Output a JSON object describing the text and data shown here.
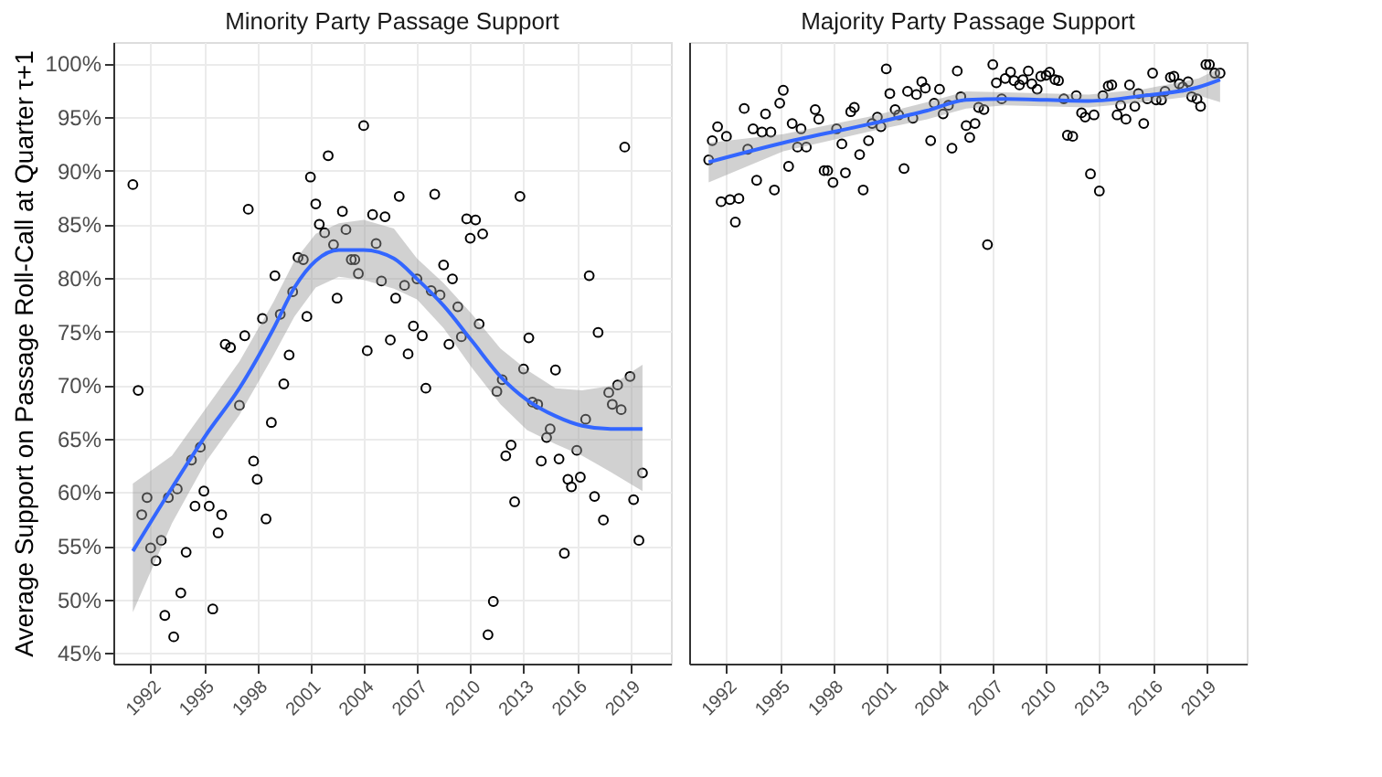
{
  "chart_data": [
    {
      "type": "scatter",
      "title": "Minority Party Passage Support",
      "ylabel": "Average Support on Passage Roll-Call at Quarter τ+1",
      "xlim": [
        1989.9,
        2021.3
      ],
      "xticks": [
        1992,
        1995,
        1998,
        2001,
        2004,
        2007,
        2010,
        2013,
        2016,
        2019
      ],
      "ylim": [
        44,
        102
      ],
      "yticks": [
        {
          "value": 45,
          "label": "45%"
        },
        {
          "value": 50,
          "label": "50%"
        },
        {
          "value": 55,
          "label": "55%"
        },
        {
          "value": 60,
          "label": "60%"
        },
        {
          "value": 65,
          "label": "65%"
        },
        {
          "value": 70,
          "label": "70%"
        },
        {
          "value": 75,
          "label": "75%"
        },
        {
          "value": 80,
          "label": "80%"
        },
        {
          "value": 85,
          "label": "85%"
        },
        {
          "value": 90,
          "label": "90%"
        },
        {
          "value": 95,
          "label": "95%"
        },
        {
          "value": 100,
          "label": "100%"
        }
      ],
      "grid": true,
      "series": [
        {
          "color": "#000000",
          "marker": "circle",
          "x": [
            1991.0,
            1991.3,
            1991.8,
            1991.5,
            1992.0,
            1992.3,
            1992.6,
            1992.8,
            1993.3,
            1993.0,
            1993.5,
            1993.7,
            1994.0,
            1994.3,
            1994.8,
            1994.5,
            1995.0,
            1995.3,
            1995.5,
            1995.8,
            1996.0,
            1996.2,
            1996.5,
            1997.0,
            1997.3,
            1997.5,
            1997.8,
            1998.0,
            1998.3,
            1998.5,
            1998.8,
            1999.0,
            1999.3,
            1999.5,
            1999.8,
            2000.0,
            2000.3,
            2000.6,
            2000.8,
            2001.0,
            2001.3,
            2001.5,
            2001.8,
            2002.0,
            2002.3,
            2002.5,
            2002.8,
            2003.0,
            2003.3,
            2003.5,
            2003.7,
            2004.0,
            2004.2,
            2004.5,
            2004.7,
            2005.0,
            2005.2,
            2005.5,
            2005.8,
            2006.0,
            2006.3,
            2006.5,
            2006.8,
            2007.0,
            2007.3,
            2007.5,
            2007.8,
            2008.0,
            2008.3,
            2008.5,
            2008.8,
            2009.0,
            2009.3,
            2009.5,
            2009.8,
            2010.0,
            2010.3,
            2010.5,
            2010.7,
            2011.0,
            2011.3,
            2011.5,
            2011.8,
            2012.0,
            2012.3,
            2012.5,
            2012.8,
            2013.0,
            2013.3,
            2013.5,
            2013.8,
            2014.0,
            2014.3,
            2014.5,
            2014.8,
            2015.0,
            2015.3,
            2015.5,
            2015.7,
            2016.0,
            2016.2,
            2016.5,
            2016.7,
            2017.0,
            2017.2,
            2017.5,
            2017.8,
            2018.0,
            2018.3,
            2018.5,
            2018.7,
            2019.0,
            2019.2,
            2019.5,
            2019.7
          ],
          "values": [
            88.7,
            69.5,
            59.5,
            57.9,
            54.8,
            53.6,
            55.5,
            48.5,
            46.5,
            59.5,
            60.3,
            50.6,
            54.4,
            63.0,
            64.2,
            58.7,
            60.1,
            58.7,
            49.1,
            56.2,
            57.9,
            73.8,
            73.5,
            68.1,
            74.6,
            86.4,
            62.9,
            61.2,
            76.2,
            57.5,
            66.5,
            80.2,
            76.6,
            70.1,
            72.8,
            78.7,
            81.9,
            81.7,
            76.4,
            89.4,
            86.9,
            85.0,
            84.2,
            91.4,
            83.1,
            78.1,
            86.2,
            84.5,
            81.7,
            81.7,
            80.4,
            94.2,
            73.2,
            85.9,
            83.2,
            79.7,
            85.7,
            74.2,
            78.1,
            87.6,
            79.3,
            72.9,
            75.5,
            79.9,
            74.6,
            69.7,
            78.8,
            87.8,
            78.4,
            81.2,
            73.8,
            79.9,
            77.3,
            74.5,
            85.5,
            83.7,
            85.4,
            75.7,
            84.1,
            46.7,
            49.8,
            69.4,
            70.5,
            63.4,
            64.4,
            59.1,
            87.6,
            71.5,
            74.4,
            68.4,
            68.2,
            62.9,
            65.1,
            65.9,
            71.4,
            63.1,
            54.3,
            61.2,
            60.5,
            63.9,
            61.4,
            66.8,
            80.2,
            59.6,
            74.9,
            57.4,
            69.3,
            68.2,
            70.0,
            67.7,
            92.2,
            70.8,
            59.3,
            55.5,
            61.8
          ]
        },
        {
          "type": "line",
          "marker": "none",
          "color": "#3366ff",
          "x": [
            1991.0,
            1993.2,
            1995.1,
            1997.0,
            1998.9,
            2000.1,
            2001.3,
            2002.6,
            2004.0,
            2005.7,
            2007.0,
            2008.5,
            2010.1,
            2011.7,
            2013.2,
            2014.8,
            2016.3,
            2017.9,
            2019.7
          ],
          "values": [
            54.5,
            60.4,
            65.3,
            69.7,
            75.2,
            79.1,
            81.6,
            82.6,
            82.6,
            81.8,
            79.9,
            77.4,
            74.1,
            70.8,
            68.6,
            67.1,
            66.2,
            65.9,
            65.9
          ],
          "lower": [
            48.8,
            57.1,
            62.8,
            67.2,
            72.7,
            76.4,
            79.1,
            80.1,
            79.8,
            79.0,
            78.0,
            75.3,
            71.6,
            68.2,
            65.8,
            64.5,
            63.4,
            61.9,
            60.1
          ],
          "upper": [
            60.8,
            63.4,
            67.8,
            72.2,
            77.7,
            81.6,
            84.1,
            85.1,
            85.4,
            84.6,
            81.8,
            79.5,
            76.6,
            73.4,
            71.4,
            69.7,
            69.5,
            69.9,
            71.9
          ]
        }
      ]
    },
    {
      "type": "scatter",
      "title": "Majority Party Passage Support",
      "xlim": [
        1989.9,
        2021.3
      ],
      "xticks": [
        1992,
        1995,
        1998,
        2001,
        2004,
        2007,
        2010,
        2013,
        2016,
        2019
      ],
      "ylim": [
        44,
        102
      ],
      "tick_labels": "x",
      "grid": true,
      "series": [
        {
          "color": "#000000",
          "marker": "circle",
          "x": [
            1991.0,
            1991.2,
            1991.5,
            1991.7,
            1992.0,
            1992.2,
            1992.5,
            1992.7,
            1993.0,
            1993.2,
            1993.5,
            1993.7,
            1994.0,
            1994.2,
            1994.5,
            1994.7,
            1995.0,
            1995.2,
            1995.5,
            1995.7,
            1996.0,
            1996.2,
            1996.5,
            1997.0,
            1997.2,
            1997.5,
            1997.7,
            1998.0,
            1998.2,
            1998.5,
            1998.7,
            1999.0,
            1999.2,
            1999.5,
            1999.7,
            2000.0,
            2000.2,
            2000.5,
            2000.7,
            2001.0,
            2001.2,
            2001.5,
            2001.7,
            2002.0,
            2002.2,
            2002.5,
            2002.7,
            2003.0,
            2003.2,
            2003.5,
            2003.7,
            2004.0,
            2004.2,
            2004.5,
            2004.7,
            2005.0,
            2005.2,
            2005.5,
            2005.7,
            2006.0,
            2006.2,
            2006.5,
            2006.7,
            2007.0,
            2007.2,
            2007.5,
            2007.7,
            2008.0,
            2008.2,
            2008.5,
            2008.7,
            2009.0,
            2009.2,
            2009.5,
            2009.7,
            2010.0,
            2010.2,
            2010.5,
            2010.7,
            2011.0,
            2011.2,
            2011.5,
            2011.7,
            2012.0,
            2012.2,
            2012.5,
            2012.7,
            2013.0,
            2013.2,
            2013.5,
            2013.7,
            2014.0,
            2014.2,
            2014.5,
            2014.7,
            2015.0,
            2015.2,
            2015.5,
            2015.7,
            2016.0,
            2016.2,
            2016.5,
            2016.7,
            2017.0,
            2017.2,
            2017.5,
            2017.7,
            2018.0,
            2018.2,
            2018.5,
            2018.7,
            2019.0,
            2019.2,
            2019.5,
            2019.8
          ],
          "values": [
            91.0,
            92.8,
            94.1,
            87.1,
            93.2,
            87.3,
            85.2,
            87.4,
            95.8,
            92.0,
            93.9,
            89.1,
            93.6,
            95.3,
            93.6,
            88.2,
            96.3,
            97.5,
            90.4,
            94.4,
            92.2,
            93.9,
            92.2,
            95.7,
            94.8,
            90.0,
            90.0,
            88.9,
            93.9,
            92.5,
            89.8,
            95.5,
            95.9,
            91.5,
            88.2,
            92.8,
            94.4,
            95.0,
            94.1,
            99.5,
            97.2,
            95.7,
            95.2,
            90.2,
            97.4,
            94.9,
            97.1,
            98.3,
            97.7,
            92.8,
            96.3,
            97.6,
            95.3,
            96.1,
            92.1,
            99.3,
            96.9,
            94.2,
            93.1,
            94.4,
            95.9,
            95.7,
            83.1,
            99.9,
            98.2,
            96.7,
            98.6,
            99.2,
            98.4,
            98.0,
            98.5,
            99.3,
            98.1,
            97.6,
            98.8,
            98.9,
            99.2,
            98.5,
            98.4,
            96.7,
            93.3,
            93.2,
            97.0,
            95.4,
            95.0,
            89.7,
            95.2,
            88.1,
            97.0,
            97.9,
            98.0,
            95.2,
            96.1,
            94.8,
            98.0,
            96.0,
            97.2,
            94.4,
            96.7,
            99.1,
            96.6,
            96.6,
            97.4,
            98.7,
            98.8,
            98.1,
            97.8,
            98.3,
            96.9,
            96.7,
            96.0,
            99.9,
            99.9,
            99.1,
            99.1
          ]
        },
        {
          "type": "line",
          "marker": "none",
          "color": "#3366ff",
          "x": [
            1991.0,
            1995.2,
            2000.2,
            2003.3,
            2005.5,
            2007.7,
            2012.4,
            2015.5,
            2018.6,
            2019.8
          ],
          "values": [
            90.8,
            92.6,
            94.4,
            95.6,
            96.6,
            96.7,
            96.5,
            97.0,
            97.8,
            98.5
          ],
          "lower": [
            88.9,
            91.8,
            93.7,
            94.8,
            95.8,
            96.1,
            95.9,
            96.4,
            97.0,
            96.4
          ],
          "upper": [
            92.6,
            93.4,
            95.1,
            96.4,
            97.4,
            97.3,
            97.1,
            97.6,
            98.6,
            99.6
          ]
        }
      ]
    }
  ]
}
